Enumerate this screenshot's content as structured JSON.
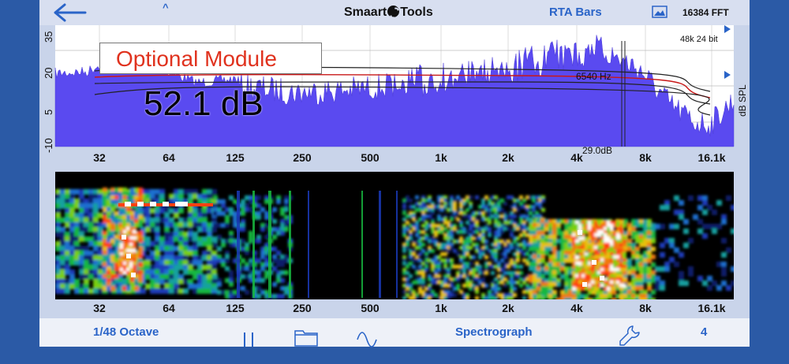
{
  "topbar": {
    "brand_left": "Smaart",
    "brand_right": "Tools",
    "mode": "RTA Bars",
    "fft": "16384 FFT"
  },
  "rta": {
    "module_badge": "Optional Module",
    "level_readout": "52.1 dB",
    "peak_frequency": "6540 Hz",
    "peak_level": "29.0dB",
    "sample_rate": "48k 24 bit",
    "y_unit": "dB SPL",
    "y_ticks": [
      "35",
      "20",
      "5",
      "-10"
    ],
    "x_ticks": [
      "32",
      "64",
      "125",
      "250",
      "500",
      "1k",
      "2k",
      "4k",
      "8k",
      "16.1k"
    ]
  },
  "spectrograph": {
    "x_ticks": [
      "32",
      "64",
      "125",
      "250",
      "500",
      "1k",
      "2k",
      "4k",
      "8k",
      "16.1k"
    ]
  },
  "bottombar": {
    "resolution": "1/48 Octave",
    "mode": "Spectrograph",
    "count": "4"
  },
  "colors": {
    "spectrum_fill": "#5a4af0",
    "accent_blue": "#2a64c8",
    "badge_red": "#e0321e",
    "weighting_curve": "#c81818"
  },
  "icons": [
    "back-arrow-icon",
    "image-icon",
    "pause-icon",
    "folder-icon",
    "wave-icon",
    "wrench-icon"
  ]
}
